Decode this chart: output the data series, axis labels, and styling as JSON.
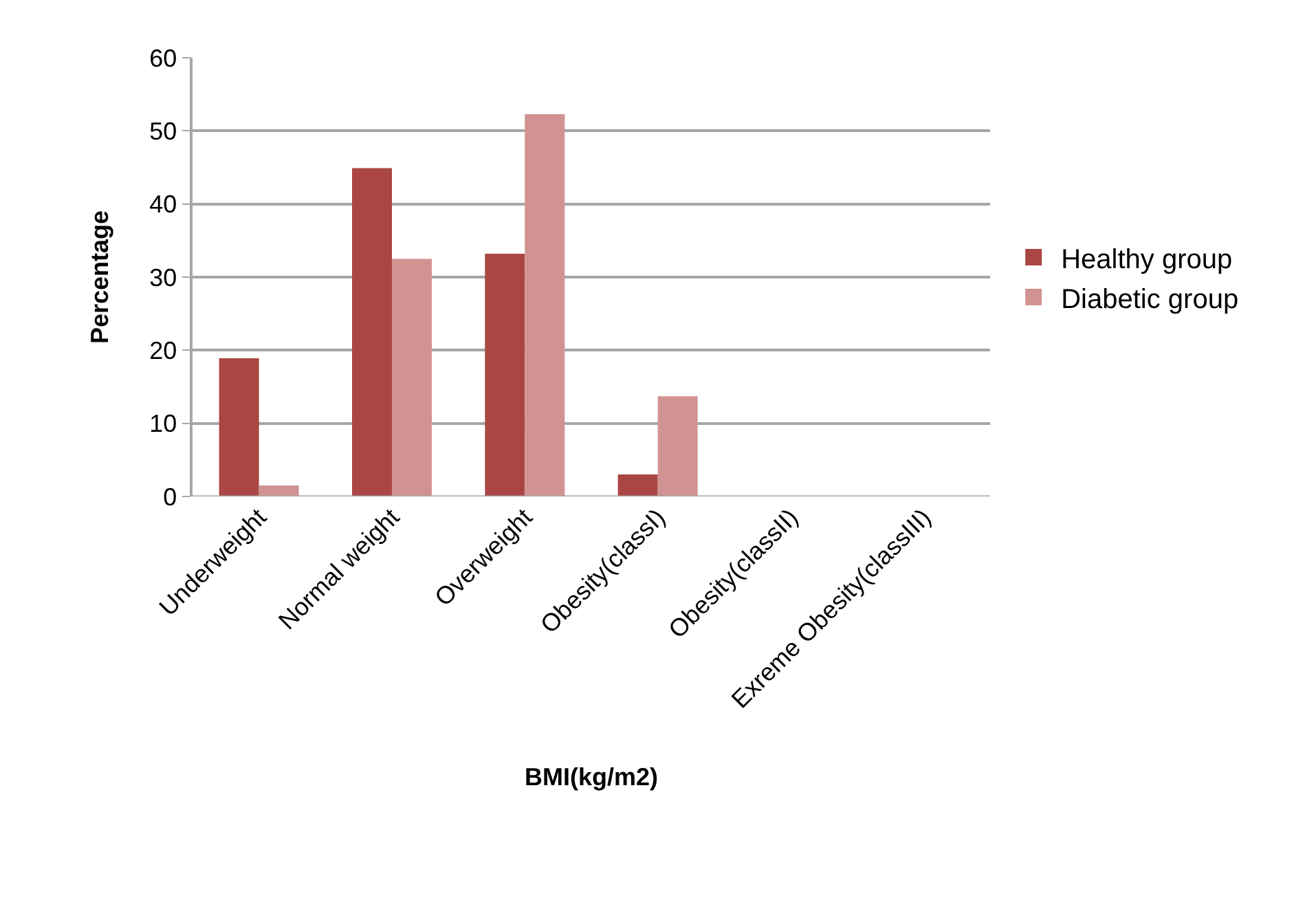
{
  "chart_data": {
    "type": "bar",
    "xlabel": "BMI(kg/m2)",
    "ylabel": "Percentage",
    "categories": [
      "Underweight",
      "Normal weight",
      "Overweight",
      "Obesity(classI)",
      "Obesity(classII)",
      "Exreme Obesity(classIII)"
    ],
    "series": [
      {
        "name": "Healthy group",
        "color": "#aa4643",
        "values": [
          18.9,
          44.9,
          33.2,
          3.0,
          0,
          0
        ]
      },
      {
        "name": "Diabetic group",
        "color": "#d19392",
        "values": [
          1.5,
          32.5,
          52.3,
          13.7,
          0,
          0
        ]
      }
    ],
    "ylim": [
      0,
      60
    ],
    "yticks": [
      0,
      10,
      20,
      30,
      40,
      50,
      60
    ],
    "grid": "y",
    "legend": "right"
  }
}
